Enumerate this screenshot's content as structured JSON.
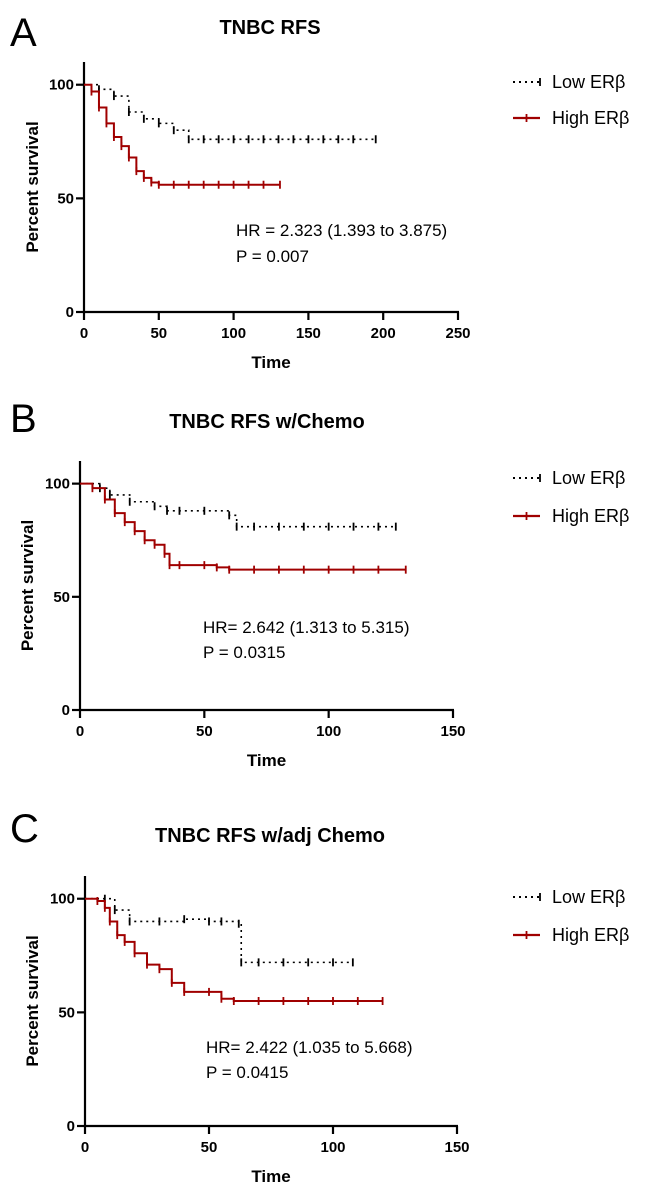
{
  "legend": {
    "low_label": "Low ERβ",
    "high_label": "High ERβ"
  },
  "colors": {
    "low": "#000000",
    "high": "#a00000"
  },
  "chart_data": [
    {
      "panel": "A",
      "type": "line",
      "title": "TNBC RFS",
      "xlabel": "Time",
      "ylabel": "Percent survival",
      "xlim": [
        0,
        250
      ],
      "ylim": [
        0,
        110
      ],
      "xticks": [
        0,
        50,
        100,
        150,
        200,
        250
      ],
      "yticks": [
        0,
        50,
        100
      ],
      "legend_position": "top-right",
      "annotations": [
        "HR = 2.323 (1.393 to 3.875)",
        "P   = 0.007"
      ],
      "series": [
        {
          "name": "Low ERβ",
          "style": "dotted",
          "x": [
            0,
            10,
            20,
            30,
            40,
            50,
            60,
            70,
            80,
            90,
            100,
            110,
            120,
            130,
            140,
            150,
            160,
            170,
            180,
            195
          ],
          "y": [
            100,
            98,
            95,
            88,
            85,
            83,
            80,
            76,
            76,
            76,
            76,
            76,
            76,
            76,
            76,
            76,
            76,
            76,
            76,
            76
          ]
        },
        {
          "name": "High ERβ",
          "style": "solid",
          "x": [
            0,
            5,
            10,
            15,
            20,
            25,
            30,
            35,
            40,
            45,
            50,
            60,
            70,
            80,
            90,
            100,
            110,
            120,
            131
          ],
          "y": [
            100,
            97,
            90,
            83,
            77,
            73,
            68,
            62,
            59,
            57,
            56,
            56,
            56,
            56,
            56,
            56,
            56,
            56,
            56
          ]
        }
      ]
    },
    {
      "panel": "B",
      "type": "line",
      "title": "TNBC RFS w/Chemo",
      "xlabel": "Time",
      "ylabel": "Percent survival",
      "xlim": [
        0,
        150
      ],
      "ylim": [
        0,
        110
      ],
      "xticks": [
        0,
        50,
        100,
        150
      ],
      "yticks": [
        0,
        50,
        100
      ],
      "legend_position": "top-right",
      "annotations": [
        "HR= 2.642 (1.313 to 5.315)",
        "P  = 0.0315"
      ],
      "series": [
        {
          "name": "Low ERβ",
          "style": "dotted",
          "x": [
            0,
            8,
            12,
            20,
            30,
            35,
            40,
            50,
            60,
            63,
            70,
            80,
            90,
            100,
            110,
            120,
            127
          ],
          "y": [
            100,
            98,
            95,
            92,
            90,
            88,
            88,
            88,
            86,
            81,
            81,
            81,
            81,
            81,
            81,
            81,
            81
          ]
        },
        {
          "name": "High ERβ",
          "style": "solid",
          "x": [
            0,
            5,
            10,
            14,
            18,
            22,
            26,
            30,
            34,
            36,
            40,
            50,
            55,
            60,
            70,
            80,
            90,
            100,
            110,
            120,
            131
          ],
          "y": [
            100,
            98,
            93,
            87,
            83,
            79,
            75,
            73,
            69,
            64,
            64,
            64,
            63,
            62,
            62,
            62,
            62,
            62,
            62,
            62,
            62
          ]
        }
      ]
    },
    {
      "panel": "C",
      "type": "line",
      "title": "TNBC RFS w/adj Chemo",
      "xlabel": "Time",
      "ylabel": "Percent survival",
      "xlim": [
        0,
        150
      ],
      "ylim": [
        0,
        110
      ],
      "xticks": [
        0,
        50,
        100,
        150
      ],
      "yticks": [
        0,
        50,
        100
      ],
      "legend_position": "top-right",
      "annotations": [
        "HR= 2.422 (1.035 to 5.668)",
        "P  = 0.0415"
      ],
      "series": [
        {
          "name": "Low ERβ",
          "style": "dotted",
          "x": [
            0,
            8,
            12,
            18,
            30,
            40,
            50,
            55,
            62,
            63,
            70,
            80,
            90,
            100,
            108
          ],
          "y": [
            100,
            100,
            95,
            90,
            90,
            91,
            90,
            90,
            89,
            72,
            72,
            72,
            72,
            72,
            72
          ]
        },
        {
          "name": "High ERβ",
          "style": "solid",
          "x": [
            0,
            5,
            8,
            10,
            13,
            16,
            20,
            25,
            30,
            35,
            40,
            50,
            55,
            60,
            70,
            80,
            90,
            100,
            110,
            120
          ],
          "y": [
            100,
            99,
            96,
            90,
            84,
            81,
            76,
            71,
            69,
            63,
            59,
            59,
            56,
            55,
            55,
            55,
            55,
            55,
            55,
            55
          ]
        }
      ]
    }
  ]
}
